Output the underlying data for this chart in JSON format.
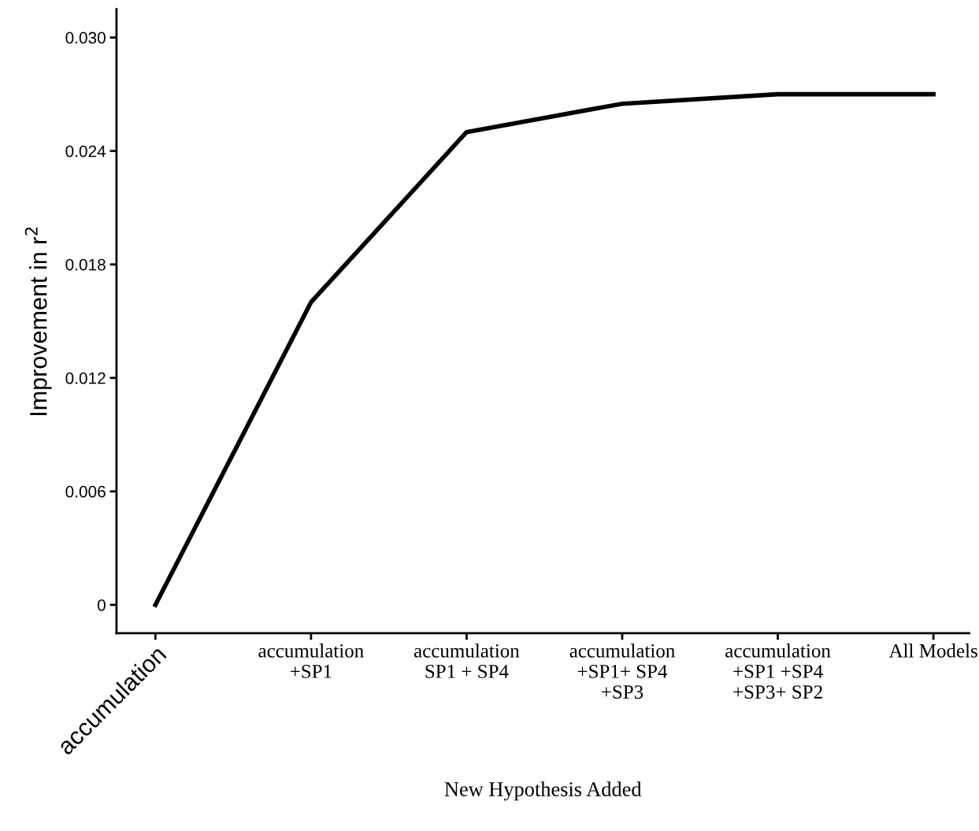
{
  "chart_data": {
    "type": "line",
    "xlabel": "New Hypothesis Added",
    "ylabel": "Improvement in r$^{2}$",
    "categories": [
      "accumulation",
      "accumulation\n+SP1",
      "accumulation\nSP1 + SP4",
      "accumulation\n+SP1+ SP4\n+SP3",
      "accumulation\n+SP1 +SP4\n+SP3+ SP2",
      "All Models"
    ],
    "series": [
      {
        "color": "#000000",
        "values": [
          0,
          0.016,
          0.025,
          0.0265,
          0.027,
          0.027
        ]
      }
    ],
    "ylim": [
      -0.0015,
      0.0315
    ],
    "yticks": [
      {
        "value": 0,
        "label": "0"
      },
      {
        "value": 0.006,
        "label": "0.006"
      },
      {
        "value": 0.012,
        "label": "0.012"
      },
      {
        "value": 0.018,
        "label": "0.018"
      },
      {
        "value": 0.024,
        "label": "0.024"
      },
      {
        "value": 0.03,
        "label": "0.030"
      }
    ],
    "grid": false,
    "legend": false,
    "marker": "none",
    "line_style": "solid"
  }
}
